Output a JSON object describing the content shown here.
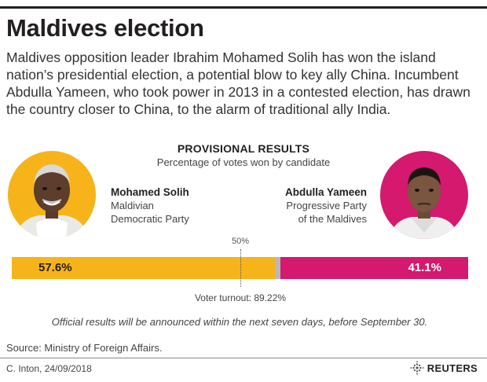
{
  "title": "Maldives election",
  "intro": "Maldives opposition leader Ibrahim Mohamed Solih has won the island nation’s presidential election, a potential blow to key ally China. Incumbent Abdulla Yameen, who took power in 2013 in a contested election, has drawn the country closer to China, to the alarm of traditional ally India.",
  "colors": {
    "solih": "#f6b41a",
    "yameen": "#d4196e",
    "remainder": "#b8b8b8",
    "rule": "#231f20"
  },
  "candidates": {
    "left": {
      "name": "Mohamed Solih",
      "party_line1": "Maldivian",
      "party_line2": "Democratic Party",
      "icon": "portrait-photo"
    },
    "right": {
      "name": "Abdulla Yameen",
      "party_line1": "Progressive Party",
      "party_line2": "of the Maldives",
      "icon": "portrait-photo"
    }
  },
  "chart_data": {
    "type": "bar",
    "orientation": "horizontal-stacked",
    "title": "PROVISIONAL RESULTS",
    "subtitle": "Percentage of votes won by candidate",
    "categories": [
      "Mohamed Solih",
      "Abdulla Yameen"
    ],
    "values": [
      57.6,
      41.1
    ],
    "value_labels": [
      "57.6%",
      "41.1%"
    ],
    "xlim": [
      0,
      100
    ],
    "reference_line": {
      "value": 50,
      "label": "50%"
    },
    "annotation": "Voter turnout: 89.22%",
    "grid": false,
    "legend": "none"
  },
  "note": "Official results will be announced within the next seven days, before September 30.",
  "source": "Source: Ministry of Foreign Affairs.",
  "credit": "C. Inton,  24/09/2018",
  "brand": "REUTERS"
}
